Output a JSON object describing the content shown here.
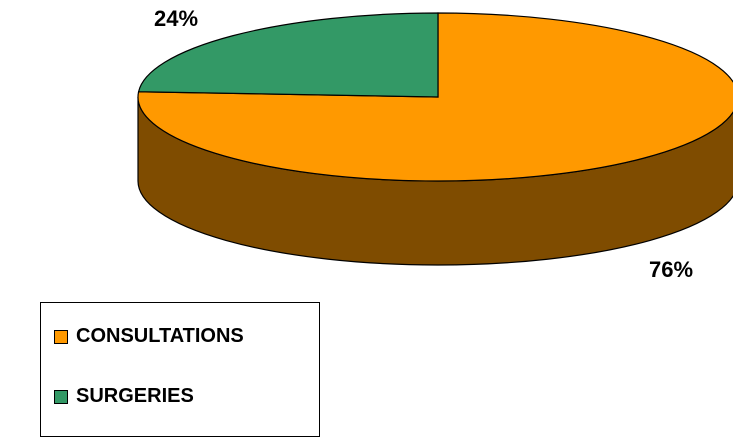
{
  "chart_data": {
    "type": "pie",
    "slices": [
      {
        "name": "CONSULTATIONS",
        "value": 76,
        "label": "76%",
        "color": "#FF9900",
        "side_color": "#7F4C00"
      },
      {
        "name": "SURGERIES",
        "value": 24,
        "label": "24%",
        "color": "#339966",
        "side_color": "#1A4D33"
      }
    ],
    "style": "3d",
    "legend": {
      "placement": "bottom-left",
      "items": [
        {
          "label": "CONSULTATIONS",
          "color": "#FF9900"
        },
        {
          "label": "SURGERIES",
          "color": "#339966"
        }
      ]
    }
  }
}
